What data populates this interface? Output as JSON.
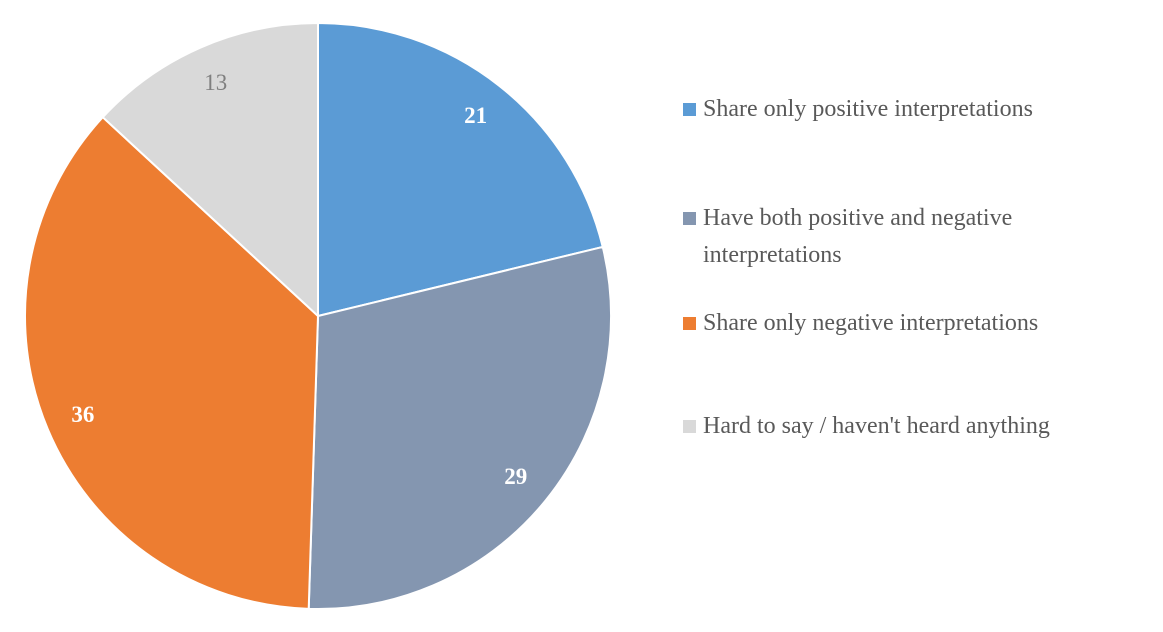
{
  "figure": {
    "background": "#FFFFFF",
    "legend_text_color": "#595959"
  },
  "chart_data": {
    "type": "pie",
    "title": "",
    "direction": "clockwise",
    "start_angle_deg": 0,
    "legend_position": "right",
    "slices": [
      {
        "label": "Share only positive interpretations",
        "value": 21,
        "color": "#5B9BD5",
        "label_color": "#FFFFFF",
        "label_bold": true
      },
      {
        "label": "Have both positive and negative interpretations",
        "value": 29,
        "color": "#8496B0",
        "label_color": "#FFFFFF",
        "label_bold": true
      },
      {
        "label": "Share only negative interpretations",
        "value": 36,
        "color": "#ED7D31",
        "label_color": "#FFFFFF",
        "label_bold": true
      },
      {
        "label": "Hard to say / haven't heard anything",
        "value": 13,
        "color": "#D9D9D9",
        "label_color": "#7F7F7F",
        "label_bold": false
      }
    ]
  }
}
